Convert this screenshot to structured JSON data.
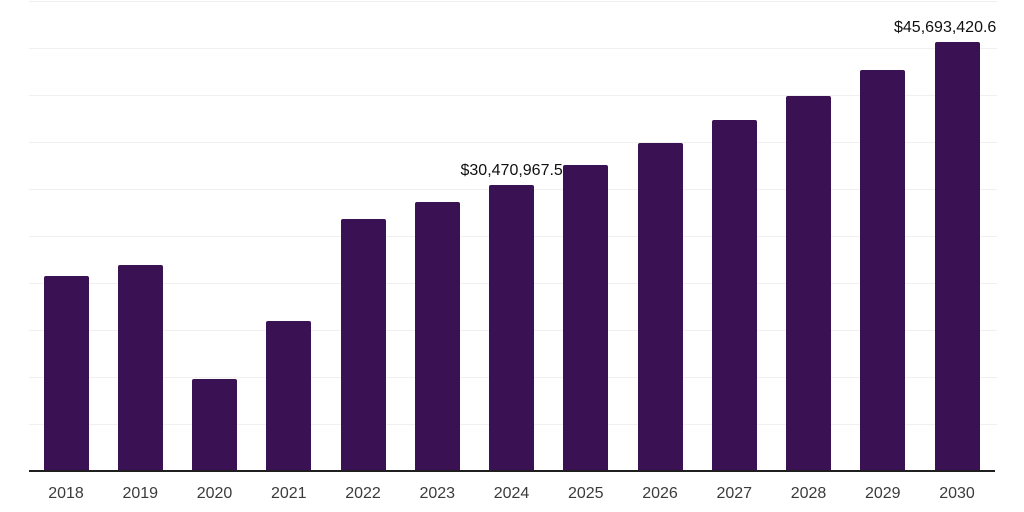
{
  "chart_data": {
    "type": "bar",
    "title": "",
    "xlabel": "",
    "ylabel": "",
    "categories": [
      "2018",
      "2019",
      "2020",
      "2021",
      "2022",
      "2023",
      "2024",
      "2025",
      "2026",
      "2027",
      "2028",
      "2029",
      "2030"
    ],
    "values": [
      20700000,
      21900000,
      9800000,
      16000000,
      26800000,
      28600000,
      30470967.5,
      32600000,
      34900000,
      37300000,
      39900000,
      42700000,
      45693420.6
    ],
    "ylim": [
      0,
      50000000
    ],
    "y_gridline_interval": 5000000,
    "grid": true,
    "legend": false,
    "y_axis_labels_shown": false,
    "data_labels": [
      {
        "category": "2024",
        "text": "$30,470,967.5"
      },
      {
        "category": "2030",
        "text": "$45,693,420.6"
      }
    ],
    "colors": {
      "bar": "#3a1152",
      "axis_line": "#1f1f1f",
      "gridline": "#f0f0f0",
      "tick_label": "#3b3b3b",
      "data_label": "#101010",
      "background": "#ffffff"
    }
  }
}
